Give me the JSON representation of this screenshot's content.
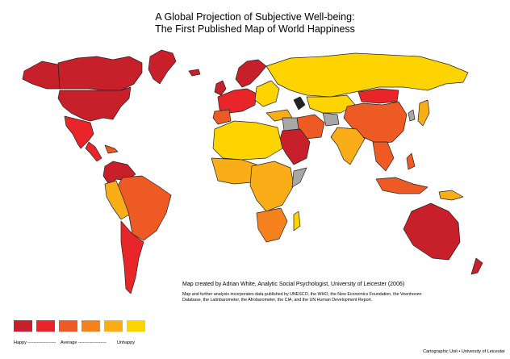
{
  "title": {
    "line1": "A Global Projection of Subjective Well-being:",
    "line2": "The First Published Map of World Happiness"
  },
  "credit": "Map created by Adrian White, Analytic Social Psychologist, University of Leicester (2006)",
  "sources": "Map and further analysis incorporates data published by UNESCO, the WHO, the New Economics Foundation, the Veenhoven Database, the Latinbarometer, the Afrobarometer, the CIA, and the UN Human Development Report.",
  "legend": {
    "colors": [
      "#c8202a",
      "#e8262a",
      "#ee5a24",
      "#f5821f",
      "#f9ad17",
      "#fdd300"
    ],
    "labels": {
      "happy": "Happy -------------------",
      "average": "Average -------------------",
      "unhappy": "Unhappy"
    }
  },
  "no_data_color": "#a7a7a7",
  "footer": "Cartographic Unit • University of Leicester"
}
